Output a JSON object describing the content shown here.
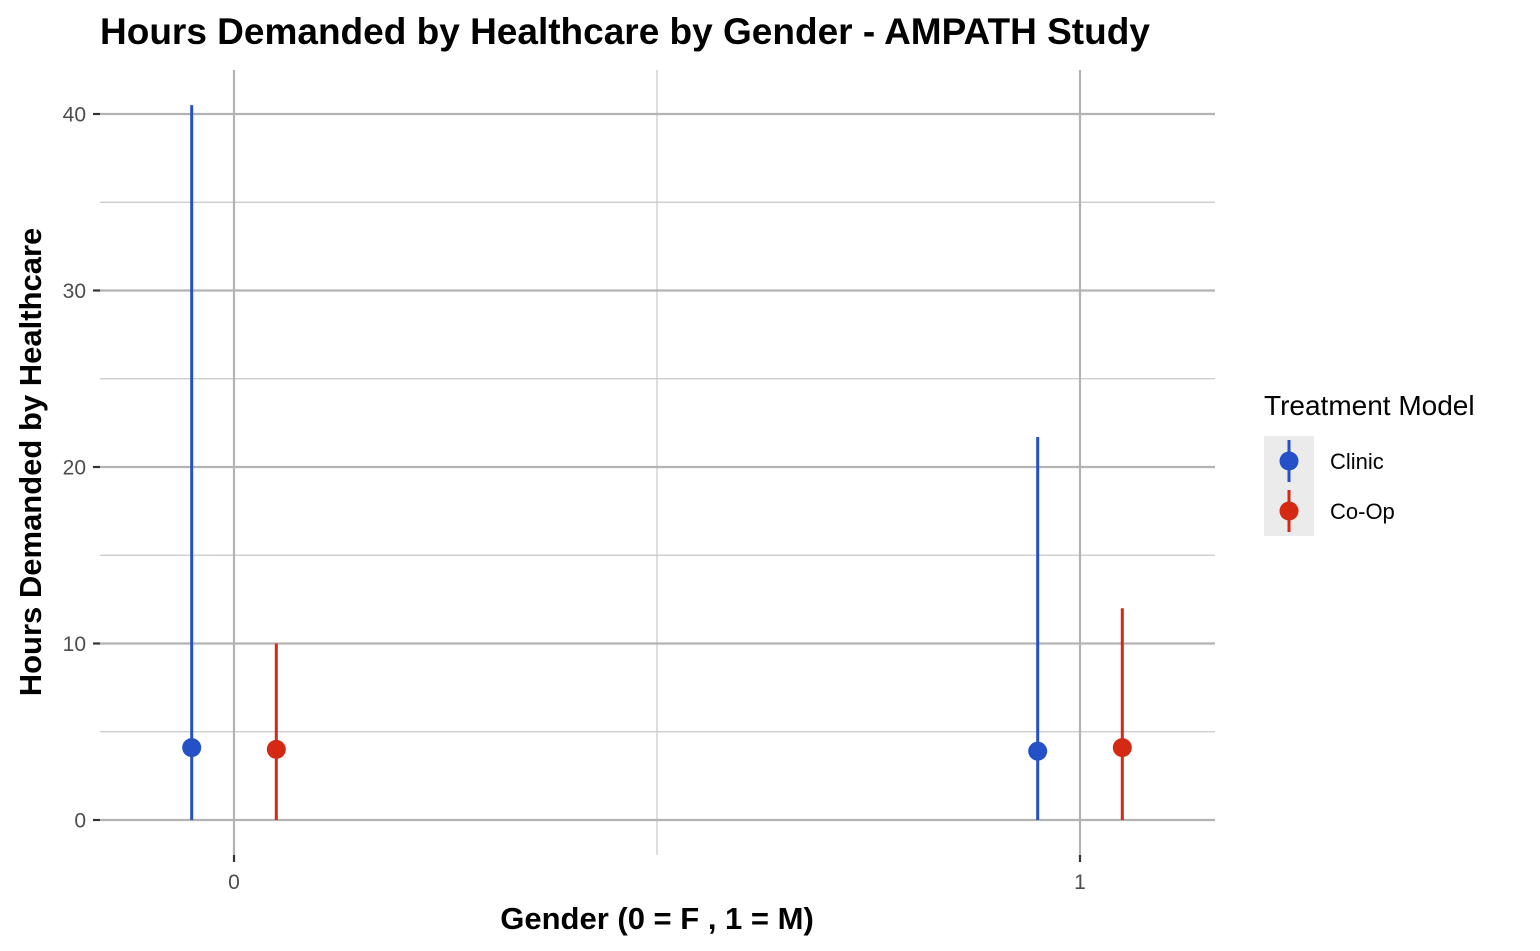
{
  "chart_data": {
    "type": "pointrange",
    "title": "Hours Demanded by Healthcare by Gender - AMPATH Study",
    "xlabel": "Gender (0 = F , 1 = M)",
    "ylabel": "Hours Demanded by Healthcare",
    "x_ticks": [
      "0",
      "1"
    ],
    "y_ticks": [
      "0",
      "10",
      "20",
      "30",
      "40"
    ],
    "xlim": [
      -0.16,
      1.16
    ],
    "ylim": [
      -2,
      42.5
    ],
    "grid": true,
    "legend": {
      "title": "Treatment Model",
      "placement": "right",
      "entries": [
        "Clinic",
        "Co-Op"
      ]
    },
    "series": [
      {
        "name": "Clinic",
        "color": "#2450c8",
        "points": [
          {
            "x": 0,
            "y": 4.1,
            "ymin": 0,
            "ymax": 40.5
          },
          {
            "x": 1,
            "y": 3.9,
            "ymin": 0,
            "ymax": 21.7
          }
        ]
      },
      {
        "name": "Co-Op",
        "color": "#d42a14",
        "points": [
          {
            "x": 0,
            "y": 4.0,
            "ymin": 0,
            "ymax": 10.0
          },
          {
            "x": 1,
            "y": 4.1,
            "ymin": 0,
            "ymax": 12.0
          }
        ]
      }
    ]
  }
}
